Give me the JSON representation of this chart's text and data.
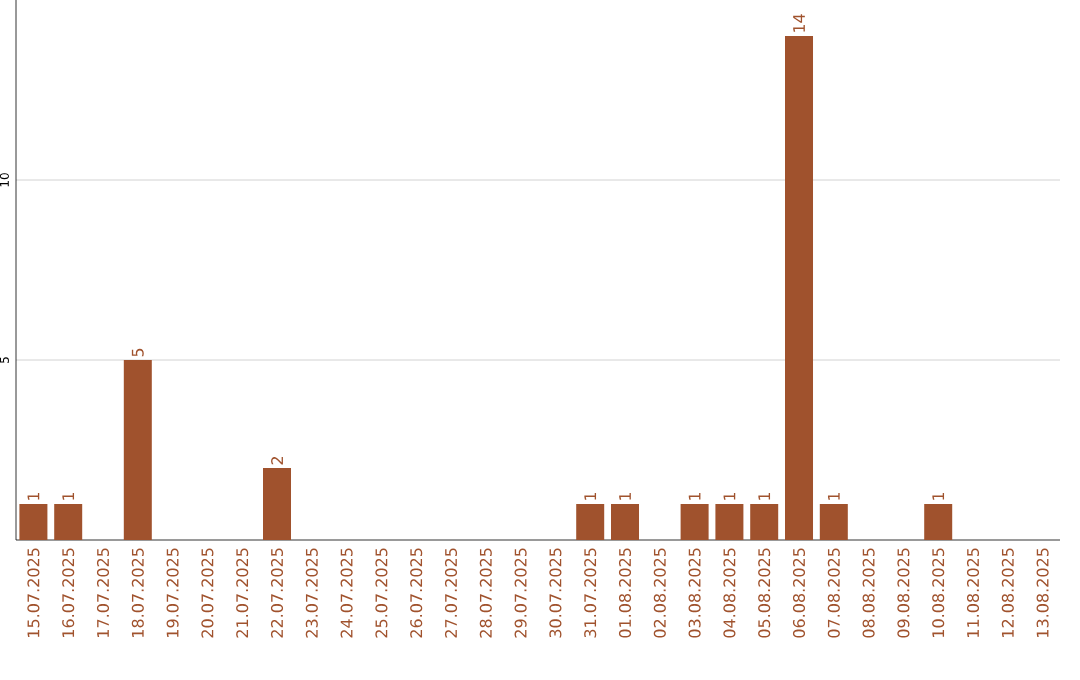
{
  "chart_data": {
    "type": "bar",
    "categories": [
      "15.07.2025",
      "16.07.2025",
      "17.07.2025",
      "18.07.2025",
      "19.07.2025",
      "20.07.2025",
      "21.07.2025",
      "22.07.2025",
      "23.07.2025",
      "24.07.2025",
      "25.07.2025",
      "26.07.2025",
      "27.07.2025",
      "28.07.2025",
      "29.07.2025",
      "30.07.2025",
      "31.07.2025",
      "01.08.2025",
      "02.08.2025",
      "03.08.2025",
      "04.08.2025",
      "05.08.2025",
      "06.08.2025",
      "07.08.2025",
      "08.08.2025",
      "09.08.2025",
      "10.08.2025",
      "11.08.2025",
      "12.08.2025",
      "13.08.2025"
    ],
    "values": [
      1,
      1,
      0,
      5,
      0,
      0,
      0,
      2,
      0,
      0,
      0,
      0,
      0,
      0,
      0,
      0,
      1,
      1,
      0,
      1,
      1,
      1,
      14,
      1,
      0,
      0,
      1,
      0,
      0,
      0
    ],
    "value_labels": [
      "1",
      "1",
      null,
      "5",
      null,
      null,
      null,
      "2",
      null,
      null,
      null,
      null,
      null,
      null,
      null,
      null,
      "1",
      "1",
      null,
      "1",
      "1",
      "1",
      "14",
      "1",
      null,
      null,
      "1",
      null,
      null,
      null
    ],
    "color": "#a0522d",
    "ylim": [
      0,
      15
    ],
    "yticks": [
      5,
      10
    ],
    "grid": "y"
  }
}
